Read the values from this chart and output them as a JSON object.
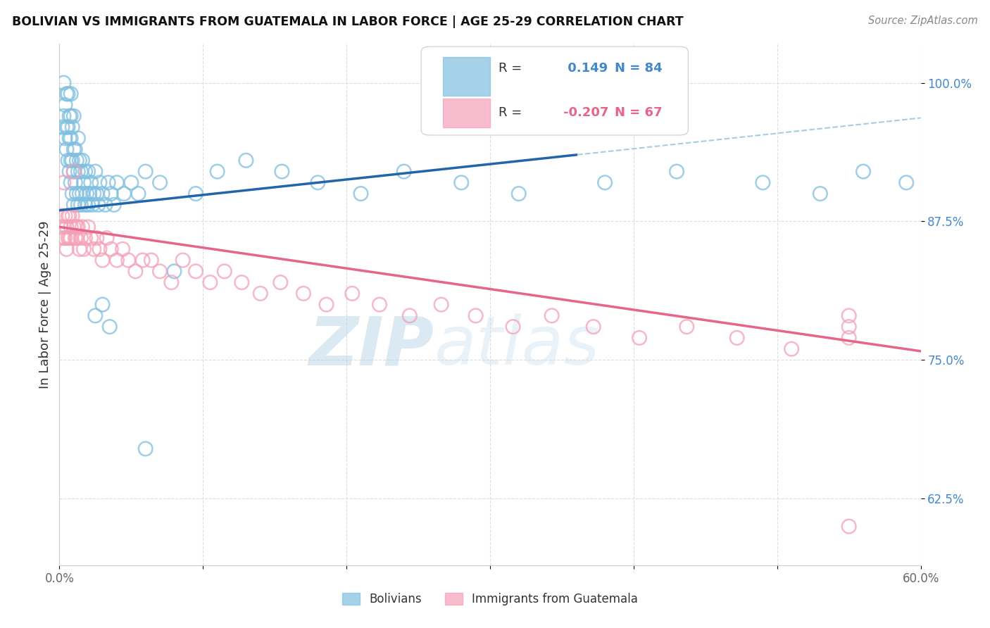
{
  "title": "BOLIVIAN VS IMMIGRANTS FROM GUATEMALA IN LABOR FORCE | AGE 25-29 CORRELATION CHART",
  "source": "Source: ZipAtlas.com",
  "ylabel": "In Labor Force | Age 25-29",
  "xlim": [
    0.0,
    0.6
  ],
  "ylim": [
    0.565,
    1.035
  ],
  "xticks": [
    0.0,
    0.1,
    0.2,
    0.3,
    0.4,
    0.5,
    0.6
  ],
  "xticklabels": [
    "0.0%",
    "",
    "",
    "",
    "",
    "",
    "60.0%"
  ],
  "yticks": [
    0.625,
    0.75,
    0.875,
    1.0
  ],
  "yticklabels": [
    "62.5%",
    "75.0%",
    "87.5%",
    "100.0%"
  ],
  "R_blue": 0.149,
  "N_blue": 84,
  "R_pink": -0.207,
  "N_pink": 67,
  "color_blue": "#7fbfdf",
  "color_pink": "#f4a0b8",
  "line_blue": "#2166ac",
  "line_pink": "#e8658a",
  "line_dashed": "#90c0e0",
  "watermark_zip": "ZIP",
  "watermark_atlas": "atlas",
  "blue_x": [
    0.002,
    0.003,
    0.003,
    0.004,
    0.004,
    0.005,
    0.005,
    0.005,
    0.006,
    0.006,
    0.006,
    0.007,
    0.007,
    0.007,
    0.008,
    0.008,
    0.008,
    0.008,
    0.008,
    0.009,
    0.009,
    0.009,
    0.01,
    0.01,
    0.01,
    0.01,
    0.011,
    0.011,
    0.012,
    0.012,
    0.013,
    0.013,
    0.013,
    0.014,
    0.014,
    0.015,
    0.015,
    0.016,
    0.016,
    0.017,
    0.018,
    0.018,
    0.019,
    0.02,
    0.02,
    0.021,
    0.022,
    0.023,
    0.024,
    0.025,
    0.026,
    0.027,
    0.028,
    0.03,
    0.032,
    0.034,
    0.036,
    0.038,
    0.04,
    0.045,
    0.05,
    0.055,
    0.06,
    0.07,
    0.08,
    0.095,
    0.11,
    0.13,
    0.155,
    0.18,
    0.21,
    0.24,
    0.28,
    0.32,
    0.38,
    0.43,
    0.49,
    0.53,
    0.56,
    0.59,
    0.025,
    0.03,
    0.035,
    0.06
  ],
  "blue_y": [
    0.96,
    0.97,
    1.0,
    0.95,
    0.98,
    0.94,
    0.96,
    0.99,
    0.93,
    0.96,
    0.99,
    0.92,
    0.95,
    0.97,
    0.91,
    0.93,
    0.95,
    0.97,
    0.99,
    0.9,
    0.93,
    0.96,
    0.89,
    0.92,
    0.94,
    0.97,
    0.91,
    0.94,
    0.9,
    0.93,
    0.89,
    0.92,
    0.95,
    0.9,
    0.93,
    0.89,
    0.92,
    0.9,
    0.93,
    0.91,
    0.89,
    0.92,
    0.9,
    0.89,
    0.92,
    0.9,
    0.91,
    0.89,
    0.9,
    0.92,
    0.9,
    0.89,
    0.91,
    0.9,
    0.89,
    0.91,
    0.9,
    0.89,
    0.91,
    0.9,
    0.91,
    0.9,
    0.92,
    0.91,
    0.83,
    0.9,
    0.92,
    0.93,
    0.92,
    0.91,
    0.9,
    0.92,
    0.91,
    0.9,
    0.91,
    0.92,
    0.91,
    0.9,
    0.92,
    0.91,
    0.79,
    0.8,
    0.78,
    0.67
  ],
  "pink_x": [
    0.001,
    0.002,
    0.003,
    0.003,
    0.004,
    0.004,
    0.005,
    0.005,
    0.006,
    0.006,
    0.007,
    0.007,
    0.008,
    0.008,
    0.009,
    0.01,
    0.01,
    0.011,
    0.012,
    0.012,
    0.013,
    0.014,
    0.015,
    0.016,
    0.017,
    0.018,
    0.02,
    0.022,
    0.024,
    0.026,
    0.028,
    0.03,
    0.033,
    0.036,
    0.04,
    0.044,
    0.048,
    0.053,
    0.058,
    0.064,
    0.07,
    0.078,
    0.086,
    0.095,
    0.105,
    0.115,
    0.127,
    0.14,
    0.154,
    0.17,
    0.186,
    0.204,
    0.223,
    0.244,
    0.266,
    0.29,
    0.316,
    0.343,
    0.372,
    0.404,
    0.437,
    0.472,
    0.51,
    0.55,
    0.55,
    0.55,
    0.55
  ],
  "pink_y": [
    0.87,
    0.88,
    0.91,
    0.86,
    0.88,
    0.86,
    0.87,
    0.85,
    0.88,
    0.86,
    0.88,
    0.86,
    0.87,
    0.86,
    0.88,
    0.87,
    0.92,
    0.86,
    0.87,
    0.86,
    0.87,
    0.85,
    0.86,
    0.87,
    0.85,
    0.86,
    0.87,
    0.86,
    0.85,
    0.86,
    0.85,
    0.84,
    0.86,
    0.85,
    0.84,
    0.85,
    0.84,
    0.83,
    0.84,
    0.84,
    0.83,
    0.82,
    0.84,
    0.83,
    0.82,
    0.83,
    0.82,
    0.81,
    0.82,
    0.81,
    0.8,
    0.81,
    0.8,
    0.79,
    0.8,
    0.79,
    0.78,
    0.79,
    0.78,
    0.77,
    0.78,
    0.77,
    0.76,
    0.77,
    0.79,
    0.78,
    0.6
  ]
}
